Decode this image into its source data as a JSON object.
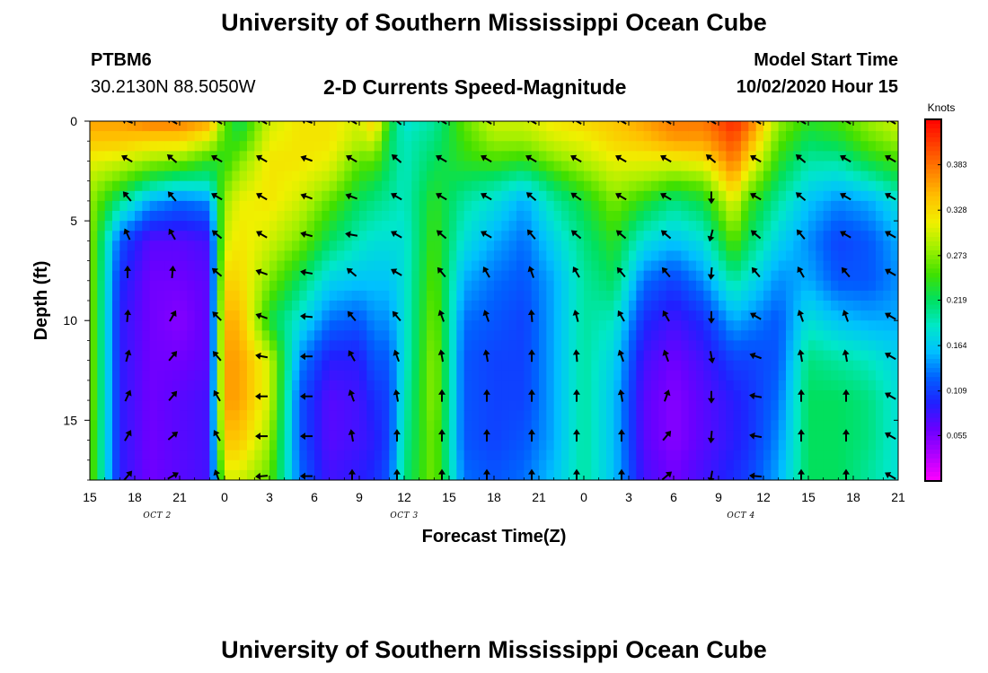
{
  "page": {
    "title": "University of Southern Mississippi Ocean Cube",
    "footer_title": "University of Southern Mississippi Ocean Cube",
    "station": "PTBM6",
    "coords": "30.2130N 88.5050W",
    "plot_title": "2-D Currents Speed-Magnitude",
    "model_start_label": "Model Start Time",
    "model_start_value": "10/02/2020 Hour 15"
  },
  "chart_data": {
    "type": "heatmap",
    "title": "2-D Currents Speed-Magnitude",
    "xlabel": "Forecast Time(Z)",
    "ylabel": "Depth (ft)",
    "x_range_hours": [
      0,
      54
    ],
    "y_range_ft": [
      0,
      18
    ],
    "y_inverted": true,
    "x_ticks": [
      {
        "hour": 0,
        "label": "15"
      },
      {
        "hour": 3,
        "label": "18"
      },
      {
        "hour": 6,
        "label": "21"
      },
      {
        "hour": 9,
        "label": "0"
      },
      {
        "hour": 12,
        "label": "3"
      },
      {
        "hour": 15,
        "label": "6"
      },
      {
        "hour": 18,
        "label": "9"
      },
      {
        "hour": 21,
        "label": "12"
      },
      {
        "hour": 24,
        "label": "15"
      },
      {
        "hour": 27,
        "label": "18"
      },
      {
        "hour": 30,
        "label": "21"
      },
      {
        "hour": 33,
        "label": "0"
      },
      {
        "hour": 36,
        "label": "3"
      },
      {
        "hour": 39,
        "label": "6"
      },
      {
        "hour": 42,
        "label": "9"
      },
      {
        "hour": 45,
        "label": "12"
      },
      {
        "hour": 48,
        "label": "15"
      },
      {
        "hour": 51,
        "label": "18"
      },
      {
        "hour": 54,
        "label": "21"
      }
    ],
    "y_ticks": [
      {
        "depth": 0,
        "label": "0"
      },
      {
        "depth": 5,
        "label": "5"
      },
      {
        "depth": 10,
        "label": "10"
      },
      {
        "depth": 15,
        "label": "15"
      }
    ],
    "date_labels": [
      {
        "hour": 4.5,
        "label": "OCT 2"
      },
      {
        "hour": 21,
        "label": "OCT 3"
      },
      {
        "hour": 43.5,
        "label": "OCT 4"
      }
    ],
    "colorbar": {
      "unit": "Knots",
      "min": 0,
      "max": 0.438,
      "ticks": [
        "0.383",
        "0.328",
        "0.273",
        "0.219",
        "0.164",
        "0.109",
        "0.055"
      ],
      "tick_values": [
        0.383,
        0.328,
        0.273,
        0.219,
        0.164,
        0.109,
        0.055
      ],
      "colors": [
        "#ff00ff",
        "#b000ff",
        "#6a00ff",
        "#2020ff",
        "#0060ff",
        "#00c0ff",
        "#00e8c8",
        "#00e060",
        "#40e000",
        "#a0f000",
        "#f0f000",
        "#ffc000",
        "#ff8000",
        "#ff4000",
        "#ff0000"
      ]
    },
    "speed_profiles": {
      "depths_ft": [
        0,
        1,
        2,
        3,
        4,
        6,
        8,
        10,
        12,
        14,
        16,
        18
      ],
      "columns": [
        {
          "hour": 0,
          "speeds": [
            0.36,
            0.34,
            0.31,
            0.29,
            0.28,
            0.28,
            0.28,
            0.28,
            0.28,
            0.28,
            0.27,
            0.27
          ]
        },
        {
          "hour": 2,
          "speeds": [
            0.36,
            0.34,
            0.3,
            0.26,
            0.21,
            0.12,
            0.1,
            0.09,
            0.09,
            0.09,
            0.09,
            0.09
          ]
        },
        {
          "hour": 4,
          "speeds": [
            0.38,
            0.33,
            0.28,
            0.22,
            0.15,
            0.07,
            0.06,
            0.06,
            0.06,
            0.06,
            0.06,
            0.06
          ]
        },
        {
          "hour": 6,
          "speeds": [
            0.38,
            0.33,
            0.27,
            0.2,
            0.13,
            0.07,
            0.06,
            0.05,
            0.06,
            0.07,
            0.07,
            0.07
          ]
        },
        {
          "hour": 8,
          "speeds": [
            0.36,
            0.3,
            0.24,
            0.2,
            0.14,
            0.08,
            0.07,
            0.07,
            0.07,
            0.08,
            0.08,
            0.08
          ]
        },
        {
          "hour": 9,
          "speeds": [
            0.26,
            0.25,
            0.24,
            0.26,
            0.28,
            0.3,
            0.33,
            0.35,
            0.36,
            0.36,
            0.34,
            0.3
          ]
        },
        {
          "hour": 10,
          "speeds": [
            0.22,
            0.24,
            0.27,
            0.29,
            0.31,
            0.32,
            0.33,
            0.35,
            0.36,
            0.36,
            0.34,
            0.3
          ]
        },
        {
          "hour": 12,
          "speeds": [
            0.3,
            0.31,
            0.32,
            0.32,
            0.32,
            0.3,
            0.27,
            0.23,
            0.3,
            0.3,
            0.28,
            0.26
          ]
        },
        {
          "hour": 14,
          "speeds": [
            0.32,
            0.32,
            0.32,
            0.31,
            0.3,
            0.27,
            0.22,
            0.18,
            0.14,
            0.12,
            0.12,
            0.13
          ]
        },
        {
          "hour": 16,
          "speeds": [
            0.32,
            0.32,
            0.31,
            0.29,
            0.26,
            0.22,
            0.17,
            0.13,
            0.09,
            0.07,
            0.07,
            0.08
          ]
        },
        {
          "hour": 18,
          "speeds": [
            0.3,
            0.29,
            0.26,
            0.24,
            0.22,
            0.19,
            0.16,
            0.12,
            0.09,
            0.08,
            0.08,
            0.09
          ]
        },
        {
          "hour": 19,
          "speeds": [
            0.34,
            0.3,
            0.26,
            0.23,
            0.21,
            0.18,
            0.16,
            0.14,
            0.12,
            0.1,
            0.09,
            0.1
          ]
        },
        {
          "hour": 20,
          "speeds": [
            0.24,
            0.22,
            0.22,
            0.21,
            0.2,
            0.18,
            0.16,
            0.14,
            0.12,
            0.11,
            0.11,
            0.12
          ]
        },
        {
          "hour": 21,
          "speeds": [
            0.18,
            0.19,
            0.19,
            0.19,
            0.19,
            0.18,
            0.18,
            0.18,
            0.18,
            0.19,
            0.2,
            0.21
          ]
        },
        {
          "hour": 23,
          "speeds": [
            0.2,
            0.21,
            0.22,
            0.23,
            0.24,
            0.25,
            0.26,
            0.27,
            0.28,
            0.28,
            0.27,
            0.27
          ]
        },
        {
          "hour": 25,
          "speeds": [
            0.26,
            0.25,
            0.24,
            0.22,
            0.2,
            0.18,
            0.15,
            0.13,
            0.12,
            0.12,
            0.12,
            0.13
          ]
        },
        {
          "hour": 27,
          "speeds": [
            0.3,
            0.28,
            0.25,
            0.21,
            0.18,
            0.15,
            0.13,
            0.12,
            0.11,
            0.11,
            0.11,
            0.12
          ]
        },
        {
          "hour": 29,
          "speeds": [
            0.3,
            0.28,
            0.24,
            0.19,
            0.15,
            0.13,
            0.12,
            0.11,
            0.11,
            0.11,
            0.12,
            0.13
          ]
        },
        {
          "hour": 31,
          "speeds": [
            0.32,
            0.3,
            0.27,
            0.23,
            0.2,
            0.17,
            0.15,
            0.15,
            0.15,
            0.15,
            0.15,
            0.16
          ]
        },
        {
          "hour": 33,
          "speeds": [
            0.33,
            0.31,
            0.29,
            0.26,
            0.23,
            0.21,
            0.2,
            0.2,
            0.2,
            0.2,
            0.2,
            0.2
          ]
        },
        {
          "hour": 35,
          "speeds": [
            0.34,
            0.33,
            0.31,
            0.29,
            0.27,
            0.24,
            0.22,
            0.19,
            0.17,
            0.16,
            0.16,
            0.16
          ]
        },
        {
          "hour": 37,
          "speeds": [
            0.36,
            0.34,
            0.31,
            0.28,
            0.24,
            0.18,
            0.13,
            0.1,
            0.08,
            0.07,
            0.07,
            0.08
          ]
        },
        {
          "hour": 39,
          "speeds": [
            0.38,
            0.36,
            0.31,
            0.26,
            0.21,
            0.16,
            0.11,
            0.08,
            0.06,
            0.05,
            0.05,
            0.06
          ]
        },
        {
          "hour": 41,
          "speeds": [
            0.38,
            0.36,
            0.32,
            0.27,
            0.23,
            0.18,
            0.14,
            0.1,
            0.08,
            0.07,
            0.07,
            0.08
          ]
        },
        {
          "hour": 43,
          "speeds": [
            0.42,
            0.4,
            0.38,
            0.35,
            0.31,
            0.26,
            0.2,
            0.15,
            0.11,
            0.09,
            0.09,
            0.1
          ]
        },
        {
          "hour": 44,
          "speeds": [
            0.39,
            0.36,
            0.33,
            0.29,
            0.25,
            0.22,
            0.18,
            0.14,
            0.11,
            0.1,
            0.1,
            0.11
          ]
        },
        {
          "hour": 46,
          "speeds": [
            0.28,
            0.26,
            0.24,
            0.22,
            0.2,
            0.17,
            0.14,
            0.12,
            0.12,
            0.13,
            0.14,
            0.15
          ]
        },
        {
          "hour": 48,
          "speeds": [
            0.24,
            0.22,
            0.2,
            0.18,
            0.16,
            0.14,
            0.15,
            0.18,
            0.21,
            0.22,
            0.22,
            0.22
          ]
        },
        {
          "hour": 50,
          "speeds": [
            0.25,
            0.23,
            0.2,
            0.17,
            0.14,
            0.11,
            0.12,
            0.16,
            0.2,
            0.22,
            0.22,
            0.22
          ]
        },
        {
          "hour": 52,
          "speeds": [
            0.28,
            0.26,
            0.23,
            0.19,
            0.15,
            0.12,
            0.12,
            0.15,
            0.19,
            0.21,
            0.21,
            0.2
          ]
        },
        {
          "hour": 54,
          "speeds": [
            0.3,
            0.28,
            0.25,
            0.22,
            0.18,
            0.15,
            0.14,
            0.15,
            0.17,
            0.18,
            0.18,
            0.18
          ]
        }
      ]
    },
    "vector_field": {
      "hours": [
        3,
        6,
        9,
        12,
        15,
        18,
        21,
        24,
        27,
        30,
        33,
        36,
        39,
        42,
        45,
        48,
        51,
        54
      ],
      "depths_ft": [
        0,
        1.9,
        3.8,
        5.7,
        7.6,
        9.8,
        11.8,
        13.8,
        15.8,
        17.8
      ],
      "direction_deg_by_hour": [
        {
          "hour": 3,
          "angles": [
            290,
            300,
            320,
            335,
            0,
            5,
            15,
            25,
            30,
            40
          ]
        },
        {
          "hour": 6,
          "angles": [
            300,
            310,
            320,
            330,
            5,
            30,
            40,
            40,
            50,
            60
          ]
        },
        {
          "hour": 9,
          "angles": [
            300,
            300,
            300,
            310,
            310,
            315,
            320,
            330,
            330,
            340
          ]
        },
        {
          "hour": 12,
          "angles": [
            300,
            300,
            300,
            300,
            290,
            290,
            280,
            270,
            270,
            265
          ]
        },
        {
          "hour": 15,
          "angles": [
            290,
            290,
            290,
            285,
            280,
            275,
            270,
            270,
            270,
            270
          ]
        },
        {
          "hour": 18,
          "angles": [
            300,
            300,
            290,
            280,
            310,
            320,
            330,
            340,
            350,
            0
          ]
        },
        {
          "hour": 21,
          "angles": [
            310,
            310,
            300,
            300,
            300,
            320,
            340,
            350,
            0,
            0
          ]
        },
        {
          "hour": 24,
          "angles": [
            300,
            300,
            300,
            310,
            320,
            340,
            350,
            0,
            0,
            0
          ]
        },
        {
          "hour": 27,
          "angles": [
            300,
            300,
            300,
            300,
            330,
            340,
            350,
            0,
            0,
            0
          ]
        },
        {
          "hour": 30,
          "angles": [
            300,
            300,
            310,
            320,
            340,
            355,
            0,
            0,
            0,
            0
          ]
        },
        {
          "hour": 33,
          "angles": [
            300,
            300,
            305,
            310,
            330,
            345,
            355,
            0,
            0,
            0
          ]
        },
        {
          "hour": 36,
          "angles": [
            300,
            300,
            300,
            310,
            320,
            330,
            340,
            350,
            0,
            0
          ]
        },
        {
          "hour": 39,
          "angles": [
            300,
            300,
            300,
            310,
            320,
            330,
            340,
            20,
            40,
            50
          ]
        },
        {
          "hour": 42,
          "angles": [
            300,
            310,
            180,
            195,
            185,
            180,
            170,
            180,
            185,
            190
          ]
        },
        {
          "hour": 45,
          "angles": [
            300,
            300,
            300,
            310,
            320,
            300,
            290,
            280,
            280,
            275
          ]
        },
        {
          "hour": 48,
          "angles": [
            300,
            310,
            310,
            320,
            330,
            340,
            350,
            0,
            0,
            0
          ]
        },
        {
          "hour": 51,
          "angles": [
            300,
            300,
            300,
            300,
            320,
            340,
            350,
            0,
            0,
            0
          ]
        },
        {
          "hour": 54,
          "angles": [
            300,
            300,
            300,
            300,
            300,
            300,
            300,
            300,
            300,
            300
          ]
        }
      ]
    }
  }
}
